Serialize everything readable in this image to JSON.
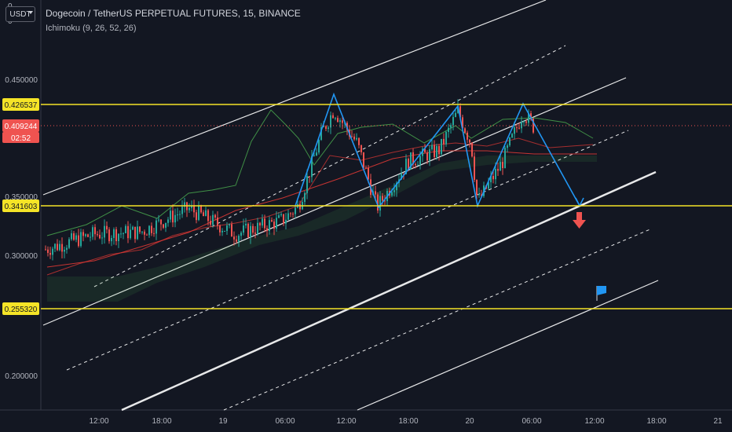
{
  "chart_data": {
    "type": "candlestick",
    "header": {
      "symbol_line": "Dogecoin / TetherUS PERPETUAL FUTURES, 15, BINANCE",
      "indicator_line": "Ichimoku (9, 26, 52, 26)",
      "currency_selector": "USDT"
    },
    "y_axis": {
      "tick_labels": [
        "0.450000",
        "0.350000",
        "0.300000",
        "0.200000"
      ],
      "partial_top_labels": [
        "0",
        "0"
      ]
    },
    "x_axis": {
      "tick_labels": [
        "12:00",
        "18:00",
        "19",
        "06:00",
        "12:00",
        "18:00",
        "20",
        "06:00",
        "12:00",
        "18:00",
        "21"
      ]
    },
    "price_tags": [
      {
        "label": "0.426537",
        "kind": "horizontal-level",
        "color": "#f5e427"
      },
      {
        "label": "0.409244",
        "kind": "last-price",
        "color": "#ef5350",
        "countdown": "02:52"
      },
      {
        "label": "0.341603",
        "kind": "horizontal-level",
        "color": "#f5e427"
      },
      {
        "label": "0.255320",
        "kind": "horizontal-level",
        "color": "#f5e427"
      }
    ],
    "colors": {
      "background": "#131722",
      "up_candle": "#26a69a",
      "down_candle": "#ef5350",
      "level_line": "#f5e427",
      "channel": "#ffffff",
      "pattern": "#2196f3",
      "ichimoku_green": "#4caf50",
      "ichimoku_red": "#e53935"
    },
    "annotations": {
      "arrow_down": "red arrow",
      "flag": "blue flag",
      "pattern": "triple top (blue zigzag)"
    }
  }
}
